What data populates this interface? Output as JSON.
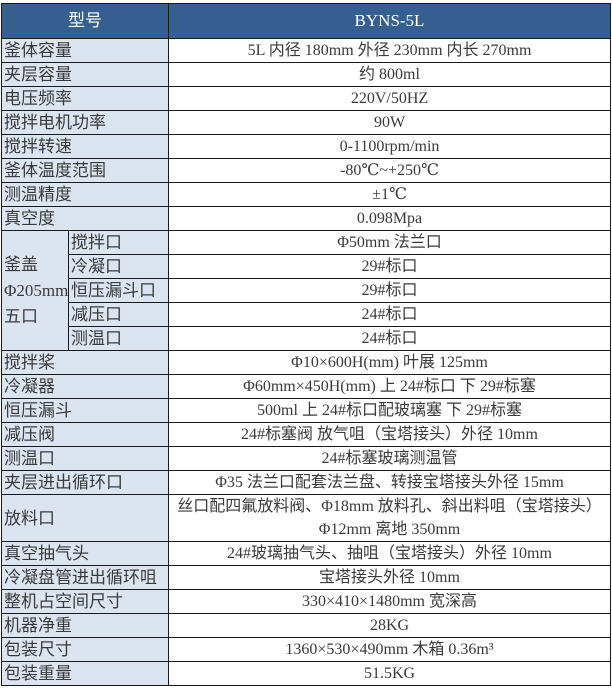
{
  "header": {
    "label": "型号",
    "value": "BYNS-5L"
  },
  "rows_top": [
    {
      "label": "釜体容量",
      "value": "5L 内径 180mm 外径 230mm  内长 270mm"
    },
    {
      "label": "夹层容量",
      "value": "约 800ml"
    },
    {
      "label": "电压频率",
      "value": "220V/50HZ"
    },
    {
      "label": "搅拌电机功率",
      "value": "90W"
    },
    {
      "label": "搅拌转速",
      "value": "0-1100rpm/min"
    },
    {
      "label": "釜体温度范围",
      "value": "-80℃~+250℃"
    },
    {
      "label": "测温精度",
      "value": "±1℃"
    },
    {
      "label": "真空度",
      "value": "0.098Mpa"
    }
  ],
  "lid": {
    "label_lines": [
      "釜盖",
      "Φ205mm",
      "五口"
    ],
    "ports": [
      {
        "label": "搅拌口",
        "value": "Φ50mm 法兰口"
      },
      {
        "label": "冷凝口",
        "value": "29#标口"
      },
      {
        "label": "恒压漏斗口",
        "value": "29#标口"
      },
      {
        "label": "减压口",
        "value": "24#标口"
      },
      {
        "label": "测温口",
        "value": "24#标口"
      }
    ]
  },
  "rows_mid": [
    {
      "label": "搅拌桨",
      "value": "Φ10×600H(mm)    叶展 125mm"
    },
    {
      "label": "冷凝器",
      "value": "Φ60mm×450H(mm) 上 24#标口        下 29#标塞"
    },
    {
      "label": "恒压漏斗",
      "value": "500ml 上 24#标口配玻璃塞 下 29#标塞"
    },
    {
      "label": "减压阀",
      "value": "24#标塞阀    放气咀（宝塔接头）外径 10mm"
    },
    {
      "label": "测温口",
      "value": "24#标塞玻璃测温管"
    },
    {
      "label": "夹层进出循环口",
      "value": "Φ35 法兰口配套法兰盘、转接宝塔接头外径 15mm"
    }
  ],
  "discharge": {
    "label": "放料口",
    "line1": "丝口配四氟放料阀、Φ18mm 放料孔、斜出料咀（宝塔接头）",
    "line2": "Φ12mm 离地 350mm"
  },
  "rows_bottom": [
    {
      "label": "真空抽气头",
      "value": "24#玻璃抽气头、抽咀（宝塔接头）外径 10mm"
    },
    {
      "label": "冷凝盘管进出循环咀",
      "value": "宝塔接头外径 10mm"
    },
    {
      "label": "整机占空间尺寸",
      "value": "330×410×1480mm 宽深高"
    },
    {
      "label": "机器净重",
      "value": "28KG"
    },
    {
      "label": "包装尺寸",
      "value": "1360×530×490mm 木箱 0.36m³"
    },
    {
      "label": "包装重量",
      "value": "51.5KG"
    }
  ],
  "colors": {
    "header_bg": "#365f91",
    "label_bg": "#dbe5f1"
  }
}
